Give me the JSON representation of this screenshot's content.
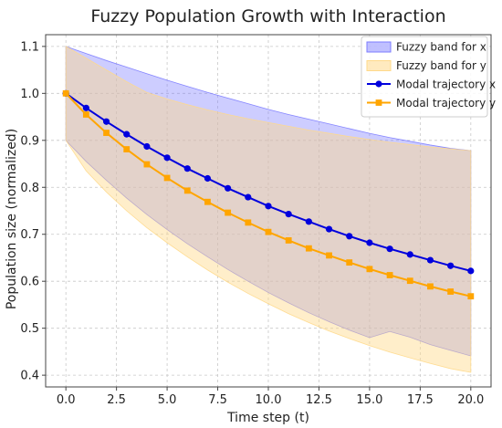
{
  "chart_data": {
    "type": "line",
    "title": "Fuzzy Population Growth with Interaction",
    "xlabel": "Time step (t)",
    "ylabel": "Population size (normalized)",
    "xlim": [
      -1,
      21
    ],
    "ylim": [
      0.375,
      1.125
    ],
    "x_ticks": [
      0.0,
      2.5,
      5.0,
      7.5,
      10.0,
      12.5,
      15.0,
      17.5,
      20.0
    ],
    "x_tick_labels": [
      "0.0",
      "2.5",
      "5.0",
      "7.5",
      "10.0",
      "12.5",
      "15.0",
      "17.5",
      "20.0"
    ],
    "y_ticks": [
      0.4,
      0.5,
      0.6,
      0.7,
      0.8,
      0.9,
      1.0,
      1.1
    ],
    "y_tick_labels": [
      "0.4",
      "0.5",
      "0.6",
      "0.7",
      "0.8",
      "0.9",
      "1.0",
      "1.1"
    ],
    "grid": true,
    "legend_position": "top-right",
    "x": [
      0,
      1,
      2,
      3,
      4,
      5,
      6,
      7,
      8,
      9,
      10,
      11,
      12,
      13,
      14,
      15,
      16,
      17,
      18,
      19,
      20
    ],
    "bands": [
      {
        "name": "Fuzzy band for x",
        "color": "#7b7bff",
        "opacity": 0.38,
        "lower": [
          0.9,
          0.855,
          0.815,
          0.777,
          0.742,
          0.71,
          0.68,
          0.652,
          0.625,
          0.6,
          0.576,
          0.554,
          0.533,
          0.514,
          0.496,
          0.48,
          0.493,
          0.481,
          0.465,
          0.453,
          0.441
        ],
        "upper": [
          1.1,
          1.085,
          1.07,
          1.056,
          1.042,
          1.028,
          1.015,
          1.002,
          0.99,
          0.978,
          0.966,
          0.955,
          0.945,
          0.935,
          0.925,
          0.915,
          0.906,
          0.898,
          0.89,
          0.883,
          0.878
        ]
      },
      {
        "name": "Fuzzy band for y",
        "color": "#ffd98a",
        "opacity": 0.45,
        "lower": [
          0.9,
          0.835,
          0.79,
          0.75,
          0.714,
          0.682,
          0.652,
          0.624,
          0.598,
          0.574,
          0.552,
          0.531,
          0.512,
          0.494,
          0.478,
          0.463,
          0.449,
          0.437,
          0.425,
          0.414,
          0.406
        ],
        "upper": [
          1.1,
          1.075,
          1.05,
          1.025,
          1.002,
          0.988,
          0.976,
          0.965,
          0.955,
          0.946,
          0.938,
          0.93,
          0.922,
          0.915,
          0.908,
          0.902,
          0.896,
          0.891,
          0.886,
          0.882,
          0.878
        ]
      }
    ],
    "series": [
      {
        "name": "Modal trajectory x",
        "color": "#0000dd",
        "marker": "circle",
        "values": [
          1.0,
          0.969,
          0.94,
          0.913,
          0.887,
          0.863,
          0.84,
          0.819,
          0.798,
          0.779,
          0.76,
          0.743,
          0.727,
          0.711,
          0.696,
          0.682,
          0.669,
          0.657,
          0.645,
          0.633,
          0.622
        ]
      },
      {
        "name": "Modal trajectory y",
        "color": "#ffa500",
        "marker": "square",
        "values": [
          1.0,
          0.955,
          0.916,
          0.881,
          0.849,
          0.82,
          0.793,
          0.769,
          0.746,
          0.725,
          0.705,
          0.687,
          0.67,
          0.655,
          0.64,
          0.626,
          0.613,
          0.601,
          0.589,
          0.578,
          0.568
        ]
      }
    ]
  }
}
